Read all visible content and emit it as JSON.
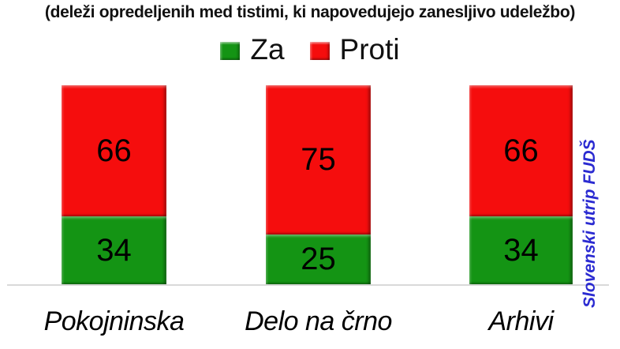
{
  "chart_data": {
    "type": "bar",
    "stacked": true,
    "title": "(deleži opredeljenih med tistimi, ki napovedujejo zanesljivo udeležbo)",
    "categories": [
      "Pokojninska",
      "Delo na črno",
      "Arhivi"
    ],
    "series": [
      {
        "name": "Za",
        "color": "#149414",
        "values": [
          34,
          25,
          34
        ]
      },
      {
        "name": "Proti",
        "color": "#F50D0D",
        "values": [
          66,
          75,
          66
        ]
      }
    ],
    "ylim": [
      0,
      100
    ],
    "grid": false,
    "legend_position": "top-center",
    "value_labels": "inside-center",
    "watermark": "Slovenski utrip FUDŠ",
    "watermark_color": "#2B2BD1",
    "baseline_color": "#d9d9d9"
  }
}
